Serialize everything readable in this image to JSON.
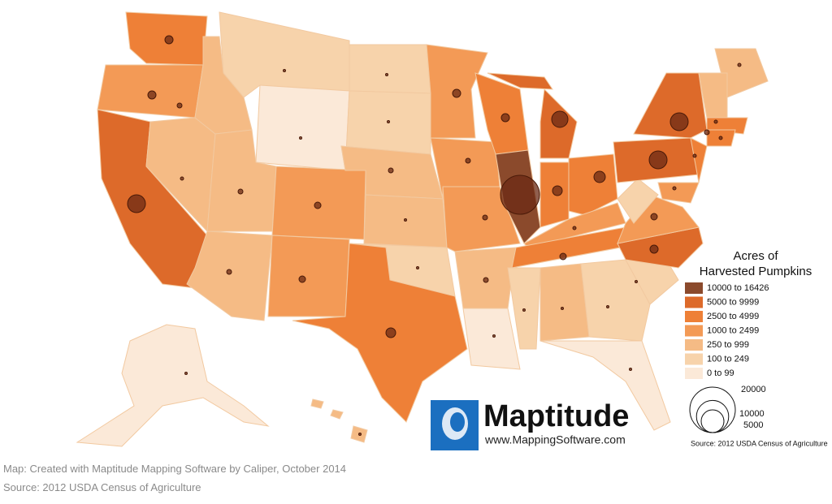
{
  "legend": {
    "title": [
      "Acres of",
      "Harvested Pumpkins"
    ],
    "classes": [
      {
        "label": "10000 to 16426",
        "color": "#8b4a2c"
      },
      {
        "label": "5000 to 9999",
        "color": "#dd6a2a"
      },
      {
        "label": "2500 to 4999",
        "color": "#ee8037"
      },
      {
        "label": "1000 to 2499",
        "color": "#f39a56"
      },
      {
        "label": "250 to 999",
        "color": "#f5bb85"
      },
      {
        "label": "100 to 249",
        "color": "#f7d3ab"
      },
      {
        "label": "0 to 99",
        "color": "#fbe9d8"
      }
    ]
  },
  "size_legend": {
    "values": [
      20000,
      10000,
      5000
    ]
  },
  "source_note": "Source: 2012 USDA Census of Agriculture",
  "logo": {
    "name": "Maptitude",
    "url": "www.MappingSoftware.com"
  },
  "caption": [
    "Map: Created with Maptitude Mapping Software by Caliper, October 2014",
    "Source: 2012 USDA Census of Agriculture"
  ]
}
